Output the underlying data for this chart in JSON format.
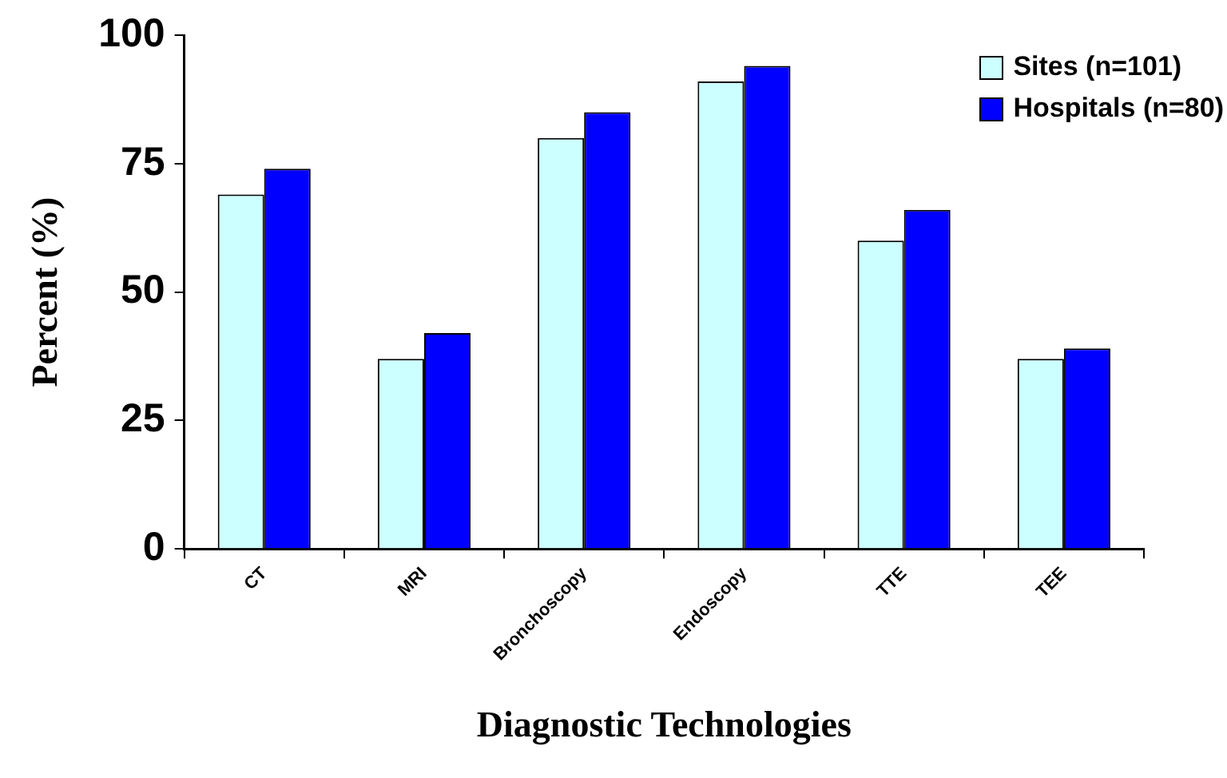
{
  "chart_data": {
    "type": "bar",
    "xlabel": "Diagnostic Technologies",
    "ylabel": "Percent (%)",
    "categories": [
      "CT",
      "MRI",
      "Bronchoscopy",
      "Endoscopy",
      "TTE",
      "TEE"
    ],
    "series": [
      {
        "name": "Sites (n=101)",
        "color": "#ccffff",
        "values": [
          69,
          37,
          80,
          91,
          60,
          37
        ]
      },
      {
        "name": "Hospitals (n=80)",
        "color": "#0000ff",
        "values": [
          74,
          42,
          85,
          94,
          66,
          39
        ]
      }
    ],
    "ylim": [
      0,
      100
    ],
    "yticks": [
      0,
      25,
      50,
      75,
      100
    ],
    "grid": false,
    "legend": "top right"
  }
}
